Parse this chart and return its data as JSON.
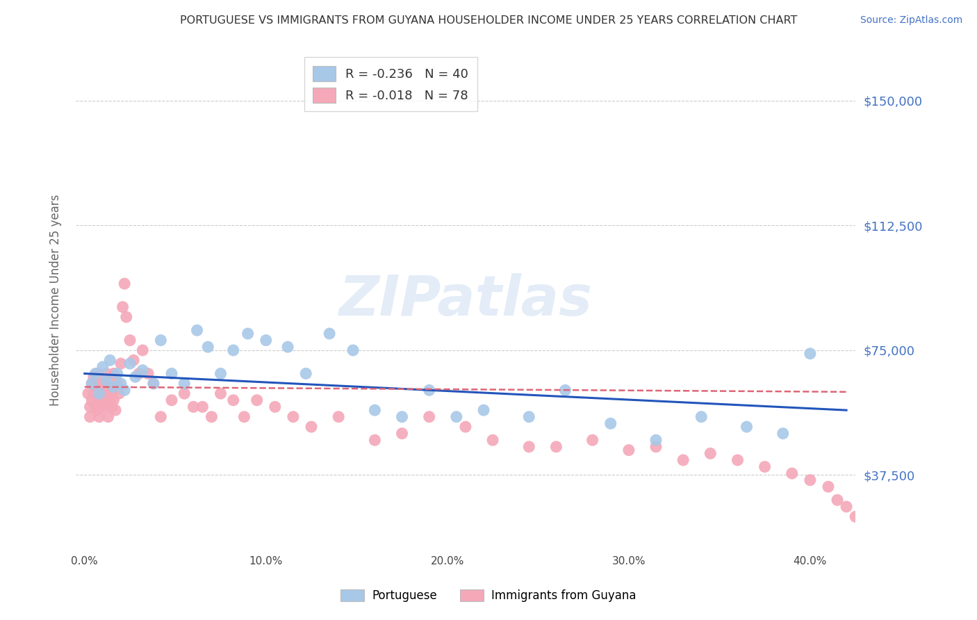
{
  "title": "PORTUGUESE VS IMMIGRANTS FROM GUYANA HOUSEHOLDER INCOME UNDER 25 YEARS CORRELATION CHART",
  "source": "Source: ZipAtlas.com",
  "ylabel": "Householder Income Under 25 years",
  "xlabel_ticks": [
    "0.0%",
    "10.0%",
    "20.0%",
    "30.0%",
    "40.0%"
  ],
  "xlabel_tick_vals": [
    0.0,
    0.1,
    0.2,
    0.3,
    0.4
  ],
  "ylabel_ticks": [
    "$37,500",
    "$75,000",
    "$112,500",
    "$150,000"
  ],
  "ylabel_tick_vals": [
    37500,
    75000,
    112500,
    150000
  ],
  "xlim": [
    -0.005,
    0.425
  ],
  "ylim": [
    15000,
    165000
  ],
  "watermark": "ZIPatlas",
  "legend1_label": "R = -0.236   N = 40",
  "legend2_label": "R = -0.018   N = 78",
  "legend_bottom_label1": "Portuguese",
  "legend_bottom_label2": "Immigrants from Guyana",
  "blue_color": "#a8c8e8",
  "pink_color": "#f4a8b8",
  "blue_line_color": "#2255bb",
  "pink_line_color": "#dd6677",
  "title_color": "#333333",
  "axis_label_color": "#666666",
  "tick_color_right": "#4472c4",
  "grid_color": "#cccccc",
  "blue_scatter_x": [
    0.004,
    0.006,
    0.008,
    0.01,
    0.012,
    0.014,
    0.016,
    0.018,
    0.02,
    0.022,
    0.025,
    0.028,
    0.032,
    0.038,
    0.042,
    0.048,
    0.055,
    0.062,
    0.068,
    0.075,
    0.082,
    0.09,
    0.1,
    0.112,
    0.122,
    0.135,
    0.148,
    0.16,
    0.175,
    0.19,
    0.205,
    0.22,
    0.245,
    0.265,
    0.29,
    0.315,
    0.34,
    0.365,
    0.385,
    0.4
  ],
  "blue_scatter_y": [
    65000,
    68000,
    62000,
    70000,
    66000,
    72000,
    64000,
    68000,
    65000,
    63000,
    71000,
    67000,
    69000,
    65000,
    78000,
    68000,
    65000,
    81000,
    76000,
    68000,
    75000,
    80000,
    78000,
    76000,
    68000,
    80000,
    75000,
    57000,
    55000,
    63000,
    55000,
    57000,
    55000,
    63000,
    53000,
    48000,
    55000,
    52000,
    50000,
    74000
  ],
  "pink_scatter_x": [
    0.002,
    0.003,
    0.003,
    0.004,
    0.004,
    0.005,
    0.005,
    0.006,
    0.006,
    0.007,
    0.007,
    0.007,
    0.008,
    0.008,
    0.008,
    0.009,
    0.009,
    0.01,
    0.01,
    0.011,
    0.011,
    0.012,
    0.012,
    0.013,
    0.013,
    0.014,
    0.014,
    0.015,
    0.015,
    0.016,
    0.016,
    0.017,
    0.018,
    0.019,
    0.02,
    0.021,
    0.022,
    0.023,
    0.025,
    0.027,
    0.03,
    0.032,
    0.035,
    0.038,
    0.042,
    0.048,
    0.055,
    0.06,
    0.065,
    0.07,
    0.075,
    0.082,
    0.088,
    0.095,
    0.105,
    0.115,
    0.125,
    0.14,
    0.16,
    0.175,
    0.19,
    0.21,
    0.225,
    0.245,
    0.26,
    0.28,
    0.3,
    0.315,
    0.33,
    0.345,
    0.36,
    0.375,
    0.39,
    0.4,
    0.41,
    0.415,
    0.42,
    0.425
  ],
  "pink_scatter_y": [
    62000,
    55000,
    58000,
    60000,
    65000,
    62000,
    67000,
    58000,
    63000,
    60000,
    57000,
    68000,
    65000,
    55000,
    62000,
    58000,
    63000,
    60000,
    65000,
    62000,
    58000,
    60000,
    68000,
    55000,
    63000,
    60000,
    65000,
    62000,
    58000,
    60000,
    68000,
    57000,
    65000,
    62000,
    71000,
    88000,
    95000,
    85000,
    78000,
    72000,
    68000,
    75000,
    68000,
    65000,
    55000,
    60000,
    62000,
    58000,
    58000,
    55000,
    62000,
    60000,
    55000,
    60000,
    58000,
    55000,
    52000,
    55000,
    48000,
    50000,
    55000,
    52000,
    48000,
    46000,
    46000,
    48000,
    45000,
    46000,
    42000,
    44000,
    42000,
    40000,
    38000,
    36000,
    34000,
    30000,
    28000,
    25000
  ],
  "blue_regression_x0": 0.0,
  "blue_regression_y0": 68000,
  "blue_regression_x1": 0.42,
  "blue_regression_y1": 57000,
  "pink_regression_x0": 0.0,
  "pink_regression_y0": 64000,
  "pink_regression_x1": 0.42,
  "pink_regression_y1": 62500
}
